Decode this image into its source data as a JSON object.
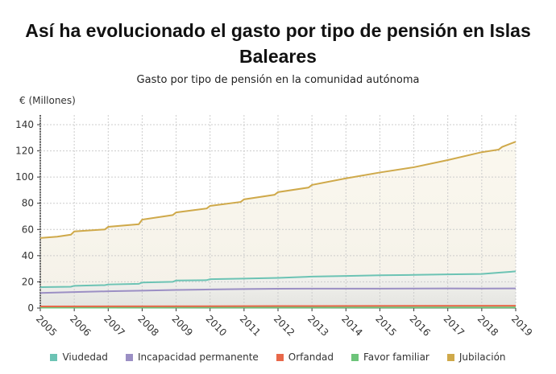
{
  "title": "Así ha evolucionado el gasto por tipo de pensión en Islas Baleares",
  "chart_data": {
    "type": "line",
    "title": "Así ha evolucionado el gasto por tipo de pensión en Islas Baleares",
    "subtitle": "Gasto por tipo de pensión en la comunidad autónoma",
    "ylabel": "€ (Millones)",
    "xlabel": "",
    "xlim": [
      2005,
      2019
    ],
    "ylim": [
      0,
      140
    ],
    "yticks": [
      0,
      20,
      40,
      60,
      80,
      100,
      120,
      140
    ],
    "xticks": [
      "2005",
      "2006",
      "2007",
      "2008",
      "2009",
      "2010",
      "2011",
      "2012",
      "2013",
      "2014",
      "2015",
      "2016",
      "2017",
      "2018",
      "2019"
    ],
    "grid": true,
    "legend": "bottom",
    "series": [
      {
        "name": "Viudedad",
        "color": "#6cc3b4",
        "x": [
          2005,
          2005.9,
          2006,
          2006.9,
          2007,
          2007.9,
          2008,
          2008.9,
          2009,
          2009.9,
          2010,
          2011,
          2012,
          2013,
          2014,
          2015,
          2016,
          2017,
          2018,
          2018.5,
          2019
        ],
        "values": [
          16,
          16.3,
          17,
          17.5,
          18,
          18.5,
          19.5,
          20,
          21,
          21.3,
          22,
          22.5,
          23,
          24,
          24.5,
          25,
          25.3,
          25.7,
          26,
          27,
          28
        ]
      },
      {
        "name": "Incapacidad permanente",
        "color": "#9b8fc4",
        "x": [
          2005,
          2006,
          2007,
          2008,
          2009,
          2010,
          2011,
          2012,
          2013,
          2014,
          2015,
          2016,
          2017,
          2018,
          2019
        ],
        "values": [
          11.5,
          12.2,
          12.8,
          13.3,
          13.8,
          14.2,
          14.5,
          14.7,
          14.8,
          14.8,
          14.8,
          14.9,
          15,
          14.9,
          15
        ]
      },
      {
        "name": "Orfandad",
        "color": "#e8684a",
        "x": [
          2005,
          2012,
          2019
        ],
        "values": [
          1.2,
          1.5,
          1.8
        ]
      },
      {
        "name": "Favor familiar",
        "color": "#6dc47a",
        "x": [
          2005,
          2012,
          2019
        ],
        "values": [
          0.3,
          0.4,
          0.5
        ]
      },
      {
        "name": "Jubilación",
        "color": "#cfa94a",
        "x": [
          2005,
          2005.5,
          2005.9,
          2006,
          2006.9,
          2007,
          2007.9,
          2008,
          2008.9,
          2009,
          2009.9,
          2010,
          2010.9,
          2011,
          2011.9,
          2012,
          2012.9,
          2013,
          2014,
          2015,
          2016,
          2017,
          2018,
          2018.5,
          2018.6,
          2019
        ],
        "values": [
          53.5,
          54.5,
          56,
          58.5,
          60,
          62,
          64,
          67.5,
          71,
          73,
          76,
          78,
          81,
          83,
          86.5,
          88.5,
          92,
          94,
          99,
          103.5,
          107.5,
          113,
          119,
          121,
          123,
          127
        ]
      }
    ]
  },
  "legend": [
    {
      "label": "Viudedad",
      "color": "#6cc3b4"
    },
    {
      "label": "Incapacidad permanente",
      "color": "#9b8fc4"
    },
    {
      "label": "Orfandad",
      "color": "#e8684a"
    },
    {
      "label": "Favor familiar",
      "color": "#6dc47a"
    },
    {
      "label": "Jubilación",
      "color": "#cfa94a"
    }
  ]
}
